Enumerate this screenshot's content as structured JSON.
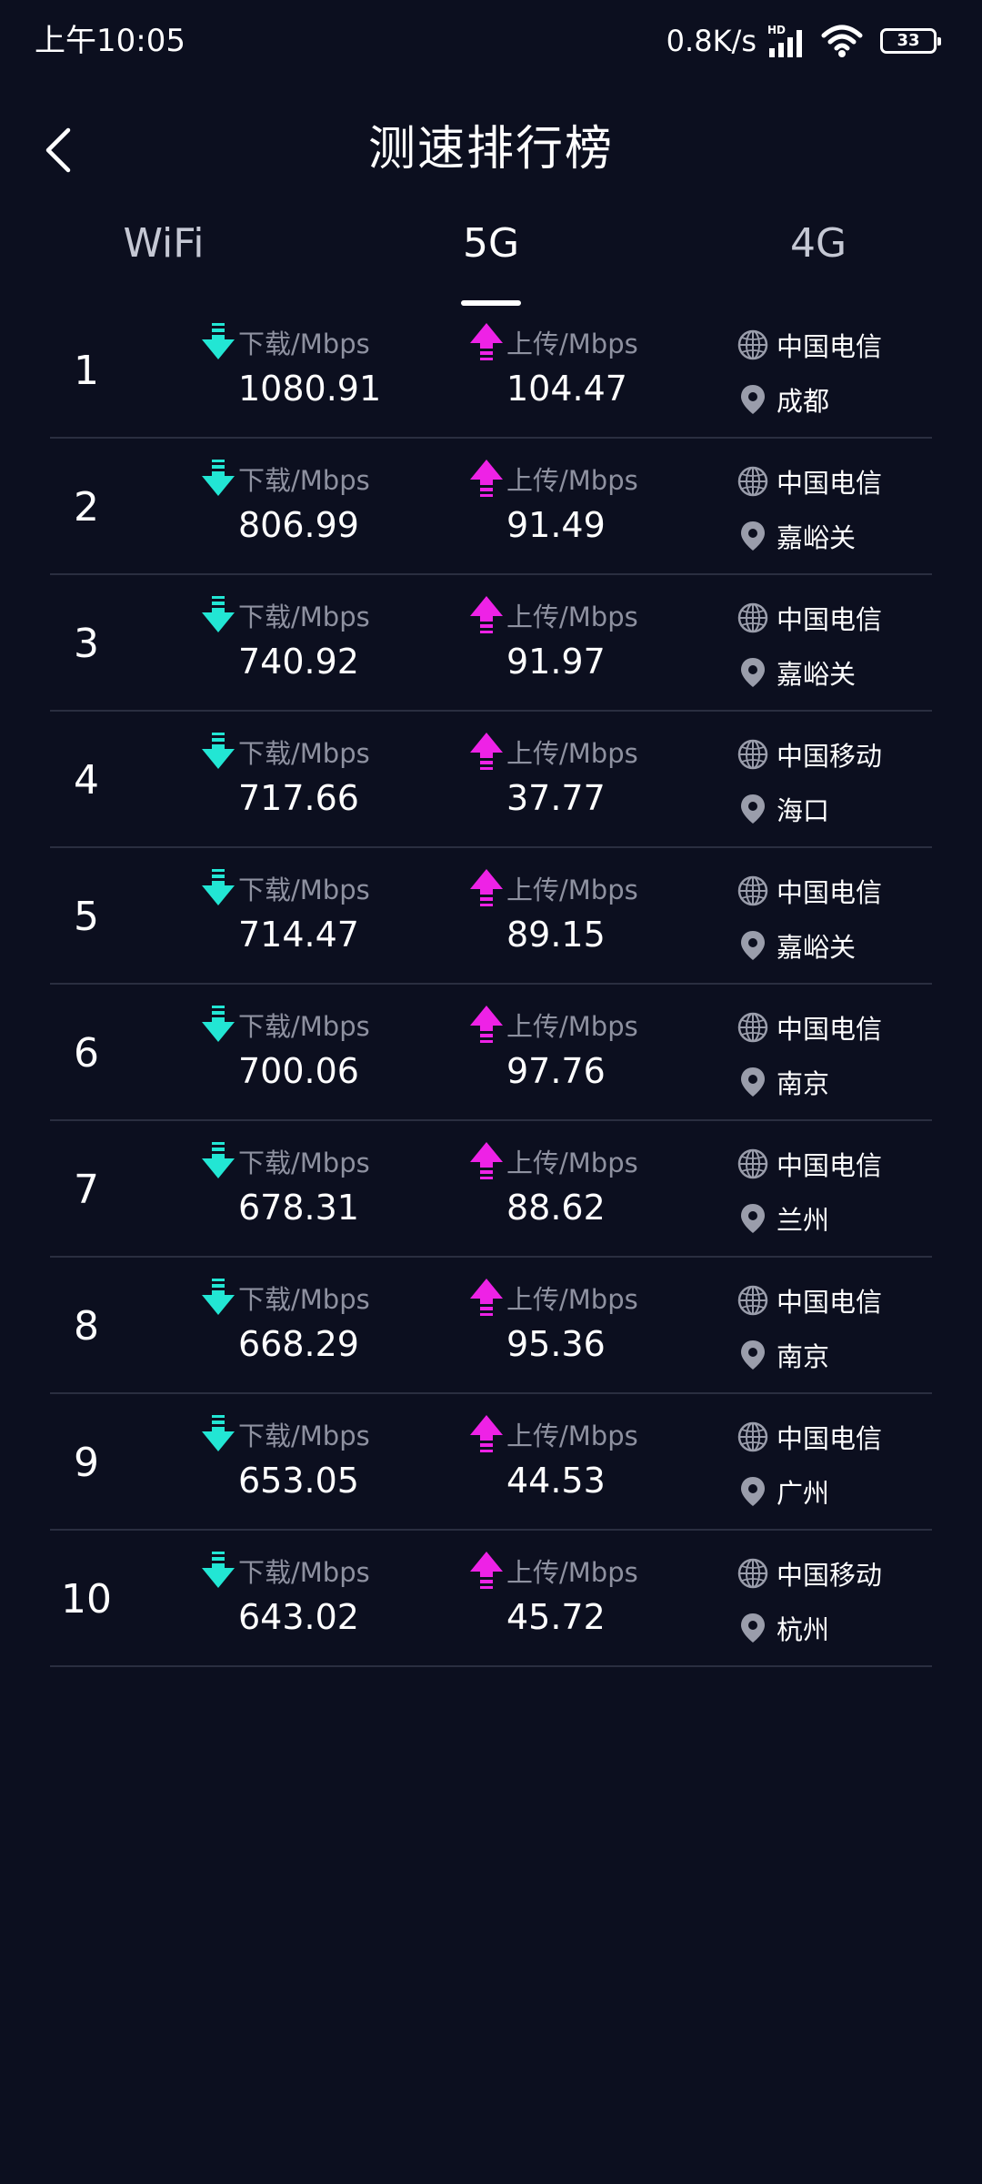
{
  "status_bar": {
    "time": "上午10:05",
    "net_speed": "0.8K/s",
    "network_badge": "HD",
    "battery_level": "33",
    "icons": [
      "signal-icon",
      "wifi-icon",
      "battery-icon"
    ]
  },
  "header": {
    "title": "测速排行榜",
    "back_icon": "chevron-left-icon"
  },
  "tabs": [
    {
      "label": "WiFi",
      "active": false
    },
    {
      "label": "5G",
      "active": true
    },
    {
      "label": "4G",
      "active": false
    }
  ],
  "labels": {
    "download": "下载/Mbps",
    "upload": "上传/Mbps"
  },
  "colors": {
    "background": "#0c0f1f",
    "download_accent": "#22e6d4",
    "upload_accent": "#ee22e6",
    "divider": "#2a2e40",
    "muted_text": "#8e91a0"
  },
  "rankings": [
    {
      "rank": "1",
      "download": "1080.91",
      "upload": "104.47",
      "carrier": "中国电信",
      "city": "成都"
    },
    {
      "rank": "2",
      "download": "806.99",
      "upload": "91.49",
      "carrier": "中国电信",
      "city": "嘉峪关"
    },
    {
      "rank": "3",
      "download": "740.92",
      "upload": "91.97",
      "carrier": "中国电信",
      "city": "嘉峪关"
    },
    {
      "rank": "4",
      "download": "717.66",
      "upload": "37.77",
      "carrier": "中国移动",
      "city": "海口"
    },
    {
      "rank": "5",
      "download": "714.47",
      "upload": "89.15",
      "carrier": "中国电信",
      "city": "嘉峪关"
    },
    {
      "rank": "6",
      "download": "700.06",
      "upload": "97.76",
      "carrier": "中国电信",
      "city": "南京"
    },
    {
      "rank": "7",
      "download": "678.31",
      "upload": "88.62",
      "carrier": "中国电信",
      "city": "兰州"
    },
    {
      "rank": "8",
      "download": "668.29",
      "upload": "95.36",
      "carrier": "中国电信",
      "city": "南京"
    },
    {
      "rank": "9",
      "download": "653.05",
      "upload": "44.53",
      "carrier": "中国电信",
      "city": "广州"
    },
    {
      "rank": "10",
      "download": "643.02",
      "upload": "45.72",
      "carrier": "中国移动",
      "city": "杭州"
    }
  ]
}
